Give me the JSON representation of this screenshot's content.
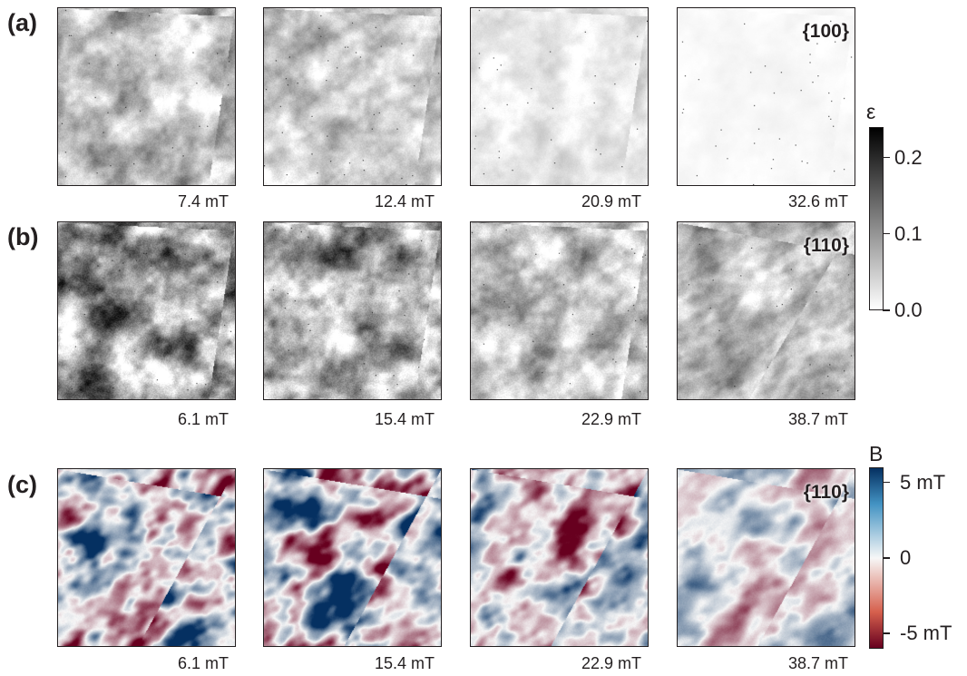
{
  "rows": [
    {
      "label": "(a)",
      "plane": "{100}",
      "panels": [
        {
          "field": "7.4 mT",
          "level": 0.45
        },
        {
          "field": "12.4 mT",
          "level": 0.38
        },
        {
          "field": "20.9 mT",
          "level": 0.18
        },
        {
          "field": "32.6 mT",
          "level": 0.04
        }
      ]
    },
    {
      "label": "(b)",
      "plane": "{110}",
      "panels": [
        {
          "field": "6.1 mT",
          "level": 0.72
        },
        {
          "field": "15.4 mT",
          "level": 0.66
        },
        {
          "field": "22.9 mT",
          "level": 0.5
        },
        {
          "field": "38.7 mT",
          "level": 0.42
        }
      ]
    },
    {
      "label": "(c)",
      "plane": "{110}",
      "panels": [
        {
          "field": "6.1 mT",
          "level": 0.9
        },
        {
          "field": "15.4 mT",
          "level": 0.85
        },
        {
          "field": "22.9 mT",
          "level": 0.75
        },
        {
          "field": "38.7 mT",
          "level": 0.4
        }
      ]
    }
  ],
  "strain_colorbar": {
    "title": "ε",
    "ticks": [
      "0.2",
      "0.1",
      "0.0"
    ],
    "tick_values": [
      0.2,
      0.1,
      0.0
    ],
    "range": [
      0,
      0.24
    ],
    "colors": {
      "low": "#ffffff",
      "high": "#000000"
    }
  },
  "field_colorbar": {
    "title": "B",
    "ticks": [
      "5 mT",
      "0",
      "-5 mT"
    ],
    "tick_values": [
      5,
      0,
      -5
    ],
    "range": [
      -6,
      6
    ],
    "colors": {
      "low": "#67001f",
      "mid": "#f7f7f7",
      "high": "#053061"
    }
  }
}
